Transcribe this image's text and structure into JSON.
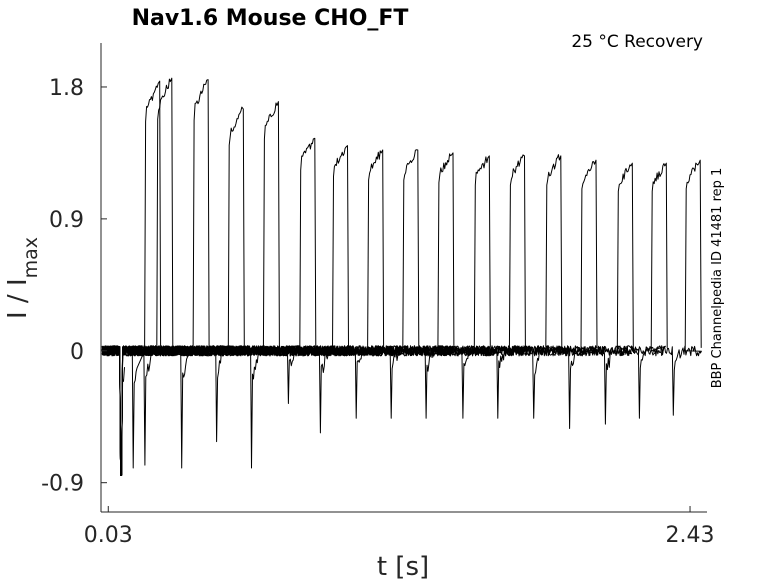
{
  "chart_data": {
    "type": "line",
    "title": "Nav1.6  Mouse  CHO_FT",
    "subtitle": "25 °C  Recovery",
    "side_note": "BBP Channelpedia ID 41481 rep 1",
    "xlabel": "t [s]",
    "ylabel_main": "I / I",
    "ylabel_sub": "max",
    "xlim": [
      0.0,
      2.5
    ],
    "ylim": [
      -1.1,
      2.1
    ],
    "xticks": [
      0.03,
      2.43
    ],
    "xtick_labels": [
      "0.03",
      "2.43"
    ],
    "yticks": [
      1.8,
      0.9,
      0,
      -0.9
    ],
    "ytick_labels": [
      "1.8",
      "0.9",
      "0",
      "-0.9"
    ],
    "grid": false,
    "line_color": "#000000",
    "pulse_pairs": [
      {
        "onset": 0.085,
        "trough": -0.85,
        "peak": 1.8
      },
      {
        "onset": 0.13,
        "trough": -0.8,
        "peak": 1.84
      },
      {
        "onset": 0.18,
        "trough": -0.78,
        "peak": 1.86
      },
      {
        "onset": 0.33,
        "trough": -0.8,
        "peak": 1.85
      },
      {
        "onset": 0.475,
        "trough": -0.62,
        "peak": 1.65
      },
      {
        "onset": 0.62,
        "trough": -0.8,
        "peak": 1.7
      },
      {
        "onset": 0.77,
        "trough": -0.36,
        "peak": 1.45
      },
      {
        "onset": 0.905,
        "trough": -0.56,
        "peak": 1.4
      },
      {
        "onset": 1.05,
        "trough": -0.46,
        "peak": 1.37
      },
      {
        "onset": 1.195,
        "trough": -0.46,
        "peak": 1.37
      },
      {
        "onset": 1.34,
        "trough": -0.46,
        "peak": 1.35
      },
      {
        "onset": 1.49,
        "trough": -0.46,
        "peak": 1.33
      },
      {
        "onset": 1.635,
        "trough": -0.46,
        "peak": 1.33
      },
      {
        "onset": 1.785,
        "trough": -0.46,
        "peak": 1.33
      },
      {
        "onset": 1.93,
        "trough": -0.53,
        "peak": 1.3
      },
      {
        "onset": 2.08,
        "trough": -0.5,
        "peak": 1.28
      },
      {
        "onset": 2.22,
        "trough": -0.46,
        "peak": 1.28
      },
      {
        "onset": 2.36,
        "trough": -0.44,
        "peak": 1.3
      }
    ]
  }
}
